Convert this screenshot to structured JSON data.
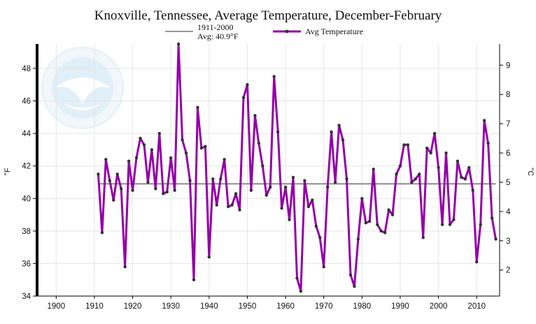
{
  "chart_data": {
    "type": "line",
    "title": "Knoxville, Tennessee, Average Temperature, December-February",
    "ylabel_left": "°F",
    "ylabel_right": "°C",
    "xlim": [
      1895,
      2016
    ],
    "ylim": [
      34,
      49.5
    ],
    "x_ticks": [
      1900,
      1910,
      1920,
      1930,
      1940,
      1950,
      1960,
      1970,
      1980,
      1990,
      2000,
      2010
    ],
    "y_ticks_left": [
      34,
      36,
      38,
      40,
      42,
      44,
      46,
      48
    ],
    "y_ticks_right_celsius": [
      2,
      3,
      4,
      5,
      6,
      7,
      8,
      9
    ],
    "grid": true,
    "legend_position": "top",
    "reference_line": {
      "label_line1": "1911-2000",
      "label_line2": "Avg: 40.9°F",
      "value": 40.9,
      "color": "#777777"
    },
    "series": [
      {
        "name": "Avg Temperature",
        "color": "#9400a8",
        "x": [
          1911,
          1912,
          1913,
          1914,
          1915,
          1916,
          1917,
          1918,
          1919,
          1920,
          1921,
          1922,
          1923,
          1924,
          1925,
          1926,
          1927,
          1928,
          1929,
          1930,
          1931,
          1932,
          1933,
          1934,
          1935,
          1936,
          1937,
          1938,
          1939,
          1940,
          1941,
          1942,
          1943,
          1944,
          1945,
          1946,
          1947,
          1948,
          1949,
          1950,
          1951,
          1952,
          1953,
          1954,
          1955,
          1956,
          1957,
          1958,
          1959,
          1960,
          1961,
          1962,
          1963,
          1964,
          1965,
          1966,
          1967,
          1968,
          1969,
          1970,
          1971,
          1972,
          1973,
          1974,
          1975,
          1976,
          1977,
          1978,
          1979,
          1980,
          1981,
          1982,
          1983,
          1984,
          1985,
          1986,
          1987,
          1988,
          1989,
          1990,
          1991,
          1992,
          1993,
          1994,
          1995,
          1996,
          1997,
          1998,
          1999,
          2000,
          2001,
          2002,
          2003,
          2004,
          2005,
          2006,
          2007,
          2008,
          2009,
          2010,
          2011,
          2012,
          2013,
          2014,
          2015
        ],
        "values": [
          41.5,
          37.9,
          42.4,
          41.1,
          39.9,
          41.5,
          40.6,
          35.8,
          42.3,
          40.5,
          42.5,
          43.7,
          43.3,
          41.0,
          43.0,
          40.6,
          44.0,
          40.3,
          40.4,
          42.5,
          40.5,
          49.5,
          43.6,
          42.8,
          41.1,
          35.0,
          45.6,
          43.1,
          43.2,
          36.4,
          41.2,
          39.6,
          41.2,
          42.4,
          39.5,
          39.6,
          40.3,
          39.3,
          46.2,
          47.0,
          40.5,
          45.1,
          43.4,
          42.0,
          40.2,
          40.7,
          47.5,
          44.1,
          39.4,
          40.7,
          38.7,
          41.3,
          35.1,
          34.3,
          41.1,
          39.5,
          39.9,
          38.3,
          37.6,
          35.8,
          40.7,
          44.1,
          41.0,
          44.5,
          43.6,
          41.2,
          35.3,
          34.6,
          37.5,
          40.0,
          38.5,
          38.6,
          41.8,
          38.4,
          38.0,
          37.9,
          39.3,
          39.0,
          41.5,
          42.0,
          43.3,
          43.3,
          41.0,
          41.2,
          41.5,
          37.6,
          43.1,
          42.8,
          44.0,
          41.9,
          38.4,
          42.8,
          38.4,
          38.7,
          42.3,
          41.3,
          41.2,
          41.9,
          40.5,
          36.1,
          38.4,
          44.8,
          43.4,
          38.8,
          37.5
        ]
      }
    ]
  }
}
